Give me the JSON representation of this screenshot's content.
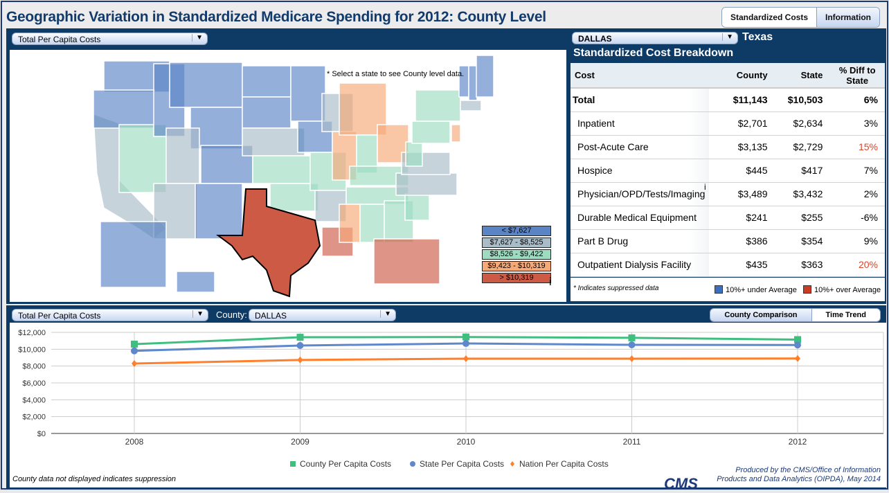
{
  "header": {
    "title": "Geographic Variation in Standardized Medicare Spending for 2012: County Level",
    "tabs": [
      "Standardized Costs",
      "Information"
    ]
  },
  "map": {
    "measure_select": "Total Per Capita Costs",
    "instruction": "* Select a state to see County level data.",
    "info_marker": "i",
    "legend": [
      {
        "label": "< $7,627",
        "color": "#5b84c4"
      },
      {
        "label": "$7,627 - $8,525",
        "color": "#a9bcc8"
      },
      {
        "label": "$8,526 - $9,422",
        "color": "#9ddcc1"
      },
      {
        "label": "$9,423 - $10,319",
        "color": "#f6a877"
      },
      {
        "label": "> $10,319",
        "color": "#cc5a45"
      }
    ],
    "selected_state": "TX",
    "state_bins": {
      "WA": 0,
      "OR": 0,
      "CA": 1,
      "NV": 2,
      "ID": 0,
      "MT": 0,
      "WY": 0,
      "UT": 1,
      "AZ": 1,
      "CO": 0,
      "NM": 0,
      "ND": 0,
      "SD": 0,
      "NE": 1,
      "KS": 2,
      "OK": 2,
      "TX": 4,
      "MN": 0,
      "IA": 0,
      "MO": 2,
      "AR": 1,
      "LA": 4,
      "WI": 1,
      "IL": 3,
      "MI": 3,
      "IN": 2,
      "OH": 3,
      "KY": 2,
      "TN": 2,
      "MS": 3,
      "AL": 2,
      "GA": 2,
      "FL": 4,
      "SC": 2,
      "NC": 1,
      "VA": 1,
      "WV": 2,
      "PA": 2,
      "NY": 2,
      "NJ": 3,
      "VT": 0,
      "NH": 0,
      "ME": 0,
      "MA": 1,
      "AK": 0,
      "HI": 0
    }
  },
  "breakdown": {
    "county_select": "DALLAS",
    "state": "Texas",
    "title": "Standardized Cost Breakdown",
    "columns": [
      "Cost",
      "County",
      "State",
      "% Diff to State"
    ],
    "rows": [
      {
        "cost": "Total",
        "county": "$11,143",
        "state": "$10,503",
        "diff": "6%",
        "flag": ""
      },
      {
        "cost": "Inpatient",
        "county": "$2,701",
        "state": "$2,634",
        "diff": "3%",
        "flag": ""
      },
      {
        "cost": "Post-Acute Care",
        "county": "$3,135",
        "state": "$2,729",
        "diff": "15%",
        "flag": "over"
      },
      {
        "cost": "Hospice",
        "county": "$445",
        "state": "$417",
        "diff": "7%",
        "flag": ""
      },
      {
        "cost": "Physician/OPD/Tests/Imaging",
        "county": "$3,489",
        "state": "$3,432",
        "diff": "2%",
        "flag": ""
      },
      {
        "cost": "Durable Medical Equipment",
        "county": "$241",
        "state": "$255",
        "diff": "-6%",
        "flag": ""
      },
      {
        "cost": "Part B Drug",
        "county": "$386",
        "state": "$354",
        "diff": "9%",
        "flag": ""
      },
      {
        "cost": "Outpatient Dialysis Facility",
        "county": "$435",
        "state": "$363",
        "diff": "20%",
        "flag": "over"
      }
    ],
    "info_marker": "i",
    "footnote": "* Indicates suppressed data",
    "legend_under": "10%+ under Average",
    "legend_over": "10%+ over Average",
    "under_color": "#3c6fbf",
    "over_color": "#cc3b22",
    "over_text_color": "#d9452b"
  },
  "trend": {
    "measure_select": "Total Per Capita Costs",
    "county_label": "County:",
    "county_select": "DALLAS",
    "view_tabs": [
      "County Comparison",
      "Time Trend"
    ],
    "suppression_note": "County data not displayed indicates suppression",
    "credit_line1": "Produced by the CMS/Office of Information",
    "credit_line2": "Products and Data Analytics (OIPDA), May 2014",
    "logo_text": "CMS"
  },
  "chart_data": {
    "type": "line",
    "categories": [
      "2008",
      "2009",
      "2010",
      "2011",
      "2012"
    ],
    "ylim": [
      0,
      12000
    ],
    "yticks": [
      "$0",
      "$2,000",
      "$4,000",
      "$6,000",
      "$8,000",
      "$10,000",
      "$12,000"
    ],
    "legend_placement": "bottom",
    "grid": true,
    "series": [
      {
        "name": "County Per Capita Costs",
        "color": "#3fbf7f",
        "marker": "square",
        "values": [
          10600,
          11420,
          11450,
          11350,
          11143
        ]
      },
      {
        "name": "State Per Capita Costs",
        "color": "#5f88cc",
        "marker": "circle",
        "values": [
          9800,
          10440,
          10680,
          10520,
          10503
        ]
      },
      {
        "name": "Nation Per Capita Costs",
        "color": "#ff7f2a",
        "marker": "diamond",
        "values": [
          8300,
          8720,
          8880,
          8880,
          8900
        ]
      }
    ]
  }
}
